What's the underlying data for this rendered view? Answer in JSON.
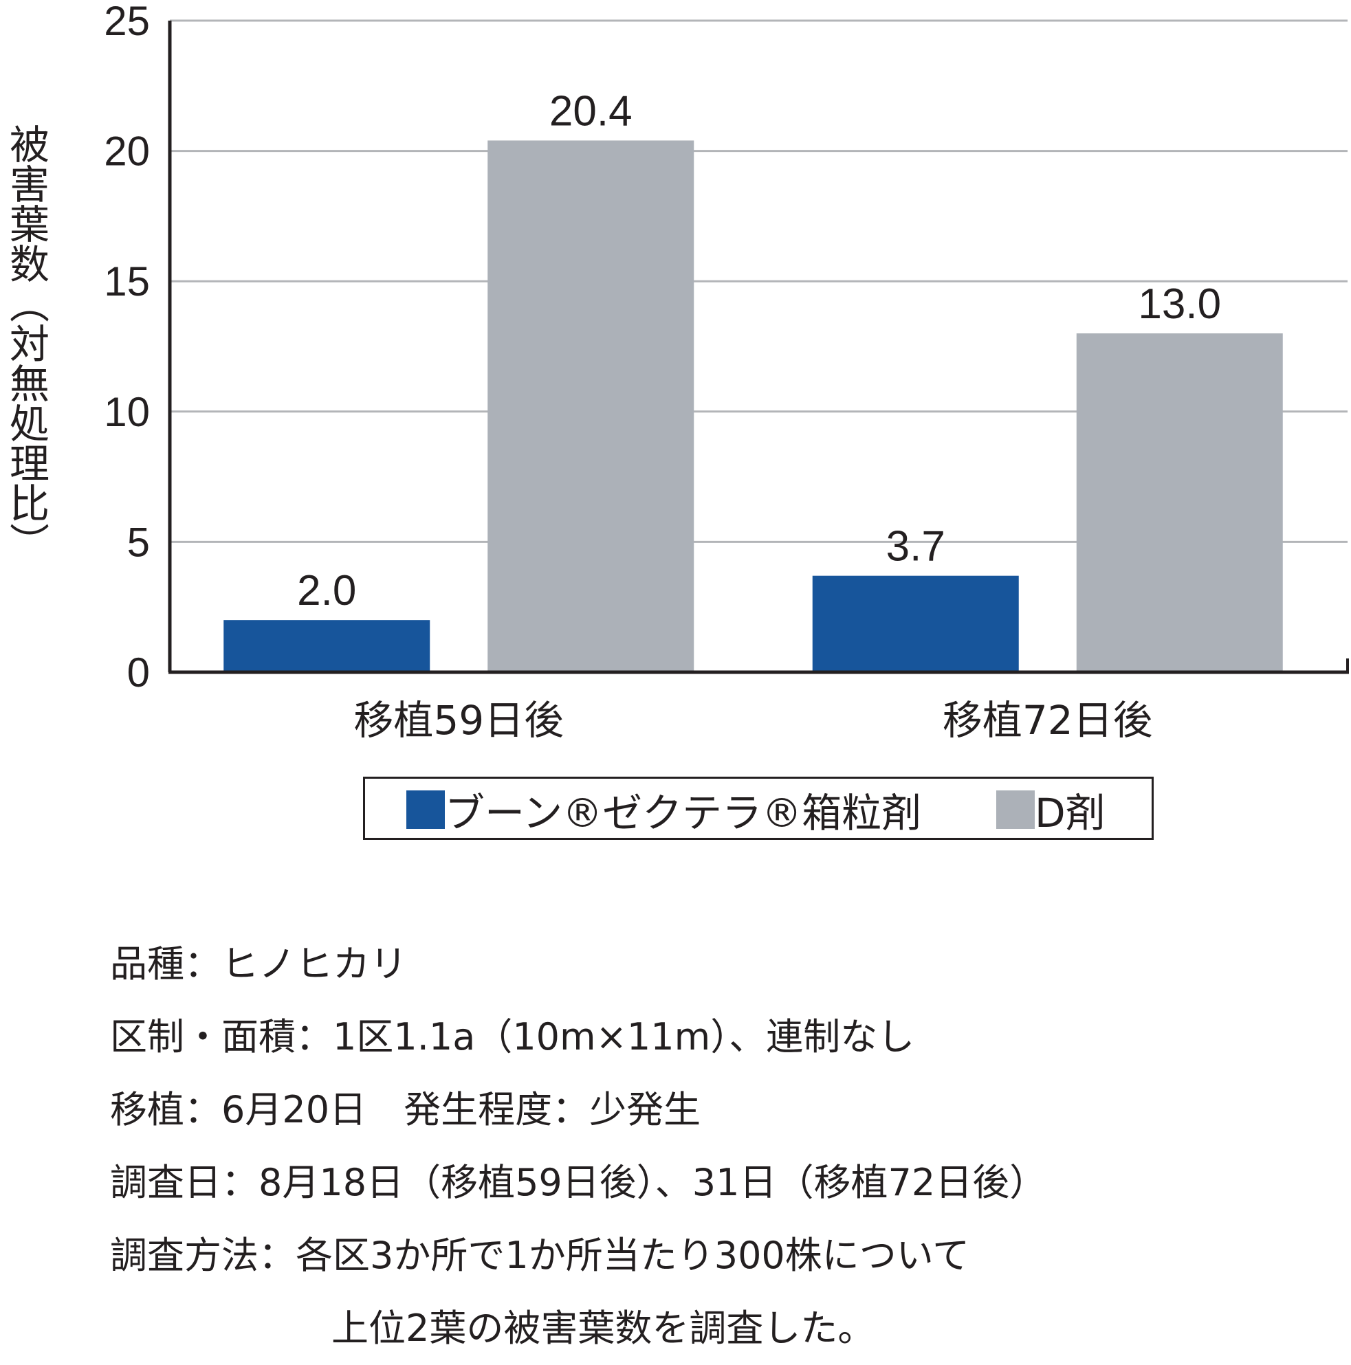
{
  "chart_data": {
    "type": "bar",
    "ylabel": "被害葉数（対無処理比）",
    "xlabel": "",
    "title": "",
    "ylim": [
      0,
      25
    ],
    "yticks": [
      "0",
      "5",
      "10",
      "15",
      "20",
      "25"
    ],
    "grid": true,
    "legend_position": "bottom",
    "categories": [
      "移植59日後",
      "移植72日後"
    ],
    "series": [
      {
        "name": "ブーン®ゼクテラ®箱粒剤",
        "color": "#17559b",
        "values": [
          2.0,
          3.7
        ],
        "labels": [
          "2.0",
          "3.7"
        ]
      },
      {
        "name": "D剤",
        "color": "#acb1b8",
        "values": [
          20.4,
          13.0
        ],
        "labels": [
          "20.4",
          "13.0"
        ]
      }
    ]
  },
  "notes": [
    "品種：ヒノヒカリ",
    "区制・面積：1区1.1a（10m×11m）、連制なし",
    "移植：6月20日　発生程度：少発生",
    "調査日：8月18日（移植59日後）、31日（移植72日後）",
    "調査方法：各区3か所で1か所当たり300株について",
    "上位2葉の被害葉数を調査した。"
  ]
}
